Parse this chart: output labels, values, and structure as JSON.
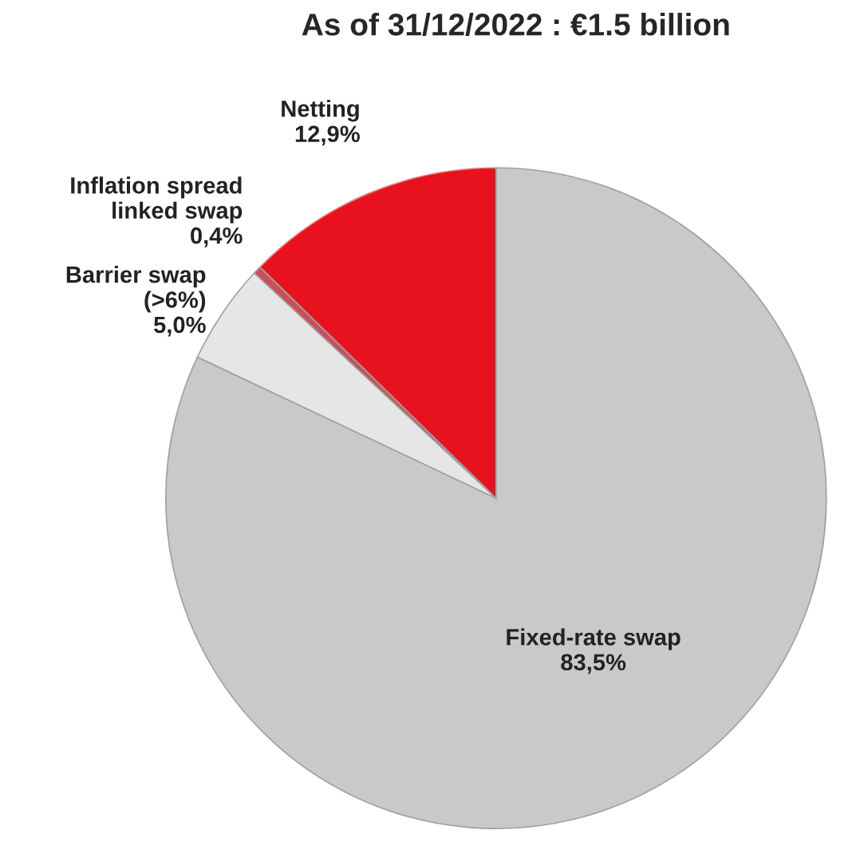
{
  "chart_data": {
    "type": "pie",
    "title": "As of 31/12/2022 : €1.5 billion",
    "categories": [
      "Fixed-rate swap",
      "Barrier swap\n(>6%)",
      "Inflation spread\nlinked swap",
      "Netting"
    ],
    "values": [
      83.5,
      5.0,
      0.4,
      12.9
    ],
    "value_labels": [
      "83,5%",
      "5,0%",
      "0,4%",
      "12,9%"
    ],
    "colors": [
      "#c9c9c9",
      "#e6e6e6",
      "#c8505a",
      "#e8121f"
    ]
  }
}
